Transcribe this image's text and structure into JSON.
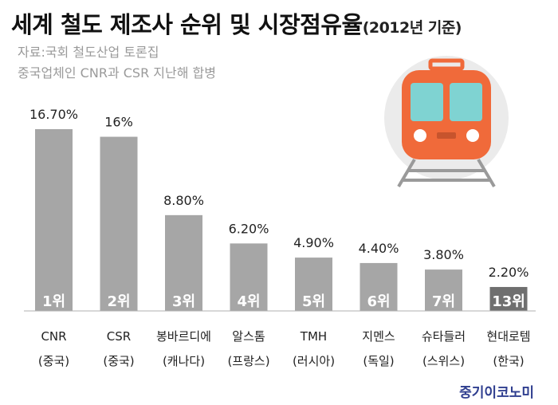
{
  "header": {
    "title": "세계 철도 제조사 순위 및 시장점유율",
    "title_suffix": "(2012년 기준)",
    "source": "자료:국회 철도산업 토론집",
    "note": "중국업체인 CNR과 CSR 지난해 합병"
  },
  "brand": "중기이코노미",
  "colors": {
    "bar": "#a6a6a6",
    "bar_last": "#6f6f6f",
    "axis": "#b0b0b0",
    "train_body": "#f06a3a",
    "train_window": "#7fd3d2",
    "train_circle": "#ebebeb"
  },
  "train_icon": "train-icon",
  "chart_data": {
    "type": "bar",
    "title": "세계 철도 제조사 순위 및 시장점유율",
    "categories": [
      "CNR",
      "CSR",
      "봉바르디에",
      "알스톰",
      "TMH",
      "지멘스",
      "슈타들러",
      "현대로템"
    ],
    "countries": [
      "(중국)",
      "(중국)",
      "(캐나다)",
      "(프랑스)",
      "(러시아)",
      "(독일)",
      "(스위스)",
      "(한국)"
    ],
    "ranks": [
      "1위",
      "2위",
      "3위",
      "4위",
      "5위",
      "6위",
      "7위",
      "13위"
    ],
    "values": [
      16.7,
      16,
      8.8,
      6.2,
      4.9,
      4.4,
      3.8,
      2.2
    ],
    "value_labels": [
      "16.70%",
      "16%",
      "8.80%",
      "6.20%",
      "4.90%",
      "4.40%",
      "3.80%",
      "2.20%"
    ],
    "unit": "%",
    "ylim": [
      0,
      16.7
    ],
    "grid": false,
    "legend": "none"
  }
}
